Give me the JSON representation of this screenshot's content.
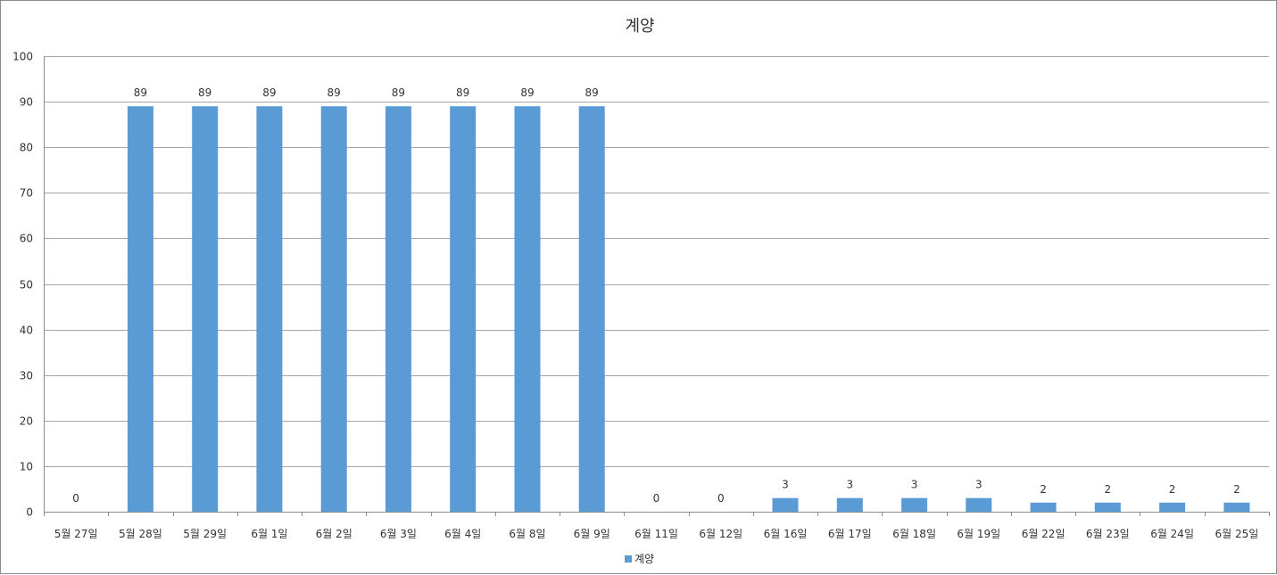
{
  "chart_data": {
    "type": "bar",
    "title": "계양",
    "categories": [
      "5월 27일",
      "5월 28일",
      "5월 29일",
      "6월 1일",
      "6월 2일",
      "6월 3일",
      "6월 4일",
      "6월 8일",
      "6월 9일",
      "6월 11일",
      "6월 12일",
      "6월 16일",
      "6월 17일",
      "6월 18일",
      "6월 19일",
      "6월 22일",
      "6월 23일",
      "6월 24일",
      "6월 25일"
    ],
    "series": [
      {
        "name": "계양",
        "color": "#5b9bd5",
        "values": [
          0,
          89,
          89,
          89,
          89,
          89,
          89,
          89,
          89,
          0,
          0,
          3,
          3,
          3,
          3,
          2,
          2,
          2,
          2
        ]
      }
    ],
    "ylim": [
      0,
      100
    ],
    "yticks": [
      0,
      10,
      20,
      30,
      40,
      50,
      60,
      70,
      80,
      90,
      100
    ],
    "grid": true,
    "legend_position": "bottom",
    "data_labels": true,
    "xlabel": "",
    "ylabel": ""
  }
}
